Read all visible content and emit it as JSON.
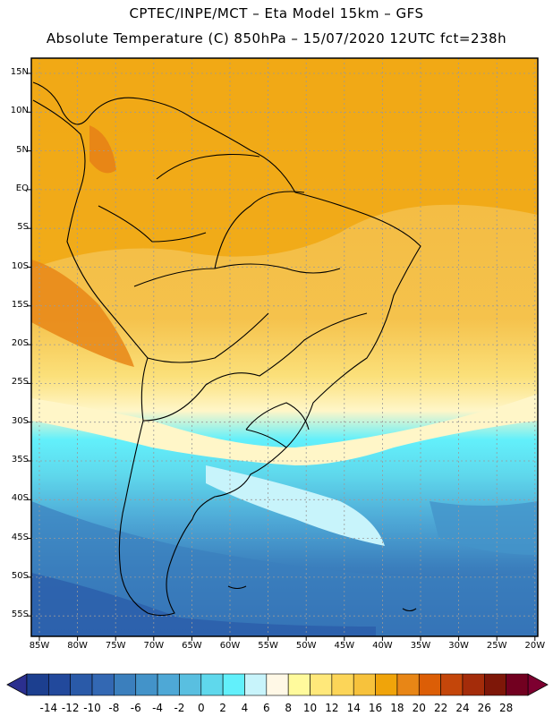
{
  "header": {
    "line1": "CPTEC/INPE/MCT –  Eta Model 15km – GFS",
    "line2": "Absolute Temperature (C) 850hPa – 15/07/2020 12UTC fct=238h"
  },
  "axes": {
    "lat_labels": [
      "15N",
      "10N",
      "5N",
      "EQ",
      "5S",
      "10S",
      "15S",
      "20S",
      "25S",
      "30S",
      "35S",
      "40S",
      "45S",
      "50S",
      "55S"
    ],
    "lon_labels": [
      "85W",
      "80W",
      "75W",
      "70W",
      "65W",
      "60W",
      "55W",
      "50W",
      "45W",
      "40W",
      "35W",
      "30W",
      "25W",
      "20W"
    ]
  },
  "colorbar": {
    "labels": [
      "-14",
      "-12",
      "-10",
      "-8",
      "-6",
      "-4",
      "-2",
      "0",
      "2",
      "4",
      "6",
      "8",
      "10",
      "12",
      "14",
      "16",
      "18",
      "20",
      "22",
      "24",
      "26",
      "28"
    ],
    "colors": [
      "#1c3f8f",
      "#22499c",
      "#2a5aa8",
      "#3368b3",
      "#3b7fbd",
      "#4393c9",
      "#4ea8d6",
      "#59bfe0",
      "#5fd8ec",
      "#62f0fb",
      "#c8f4fb",
      "#fff8e6",
      "#fffa9c",
      "#ffe87a",
      "#fcd558",
      "#f7c23c",
      "#f0a40a",
      "#e88616",
      "#dc5e06",
      "#c4460a",
      "#a42c0a",
      "#7e1708",
      "#720020"
    ],
    "low_arrow_color": "#2b2f8f",
    "high_arrow_color": "#7d0030"
  },
  "map": {
    "land_outline_color": "#000000",
    "grid_color": "#9a9a9a"
  }
}
